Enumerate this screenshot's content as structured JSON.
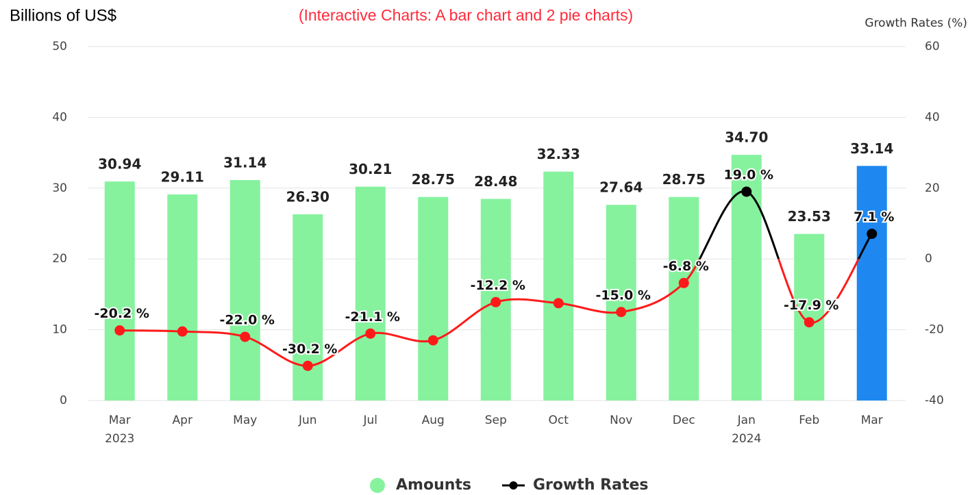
{
  "chart_data": {
    "type": "bar-line",
    "title": "(Interactive Charts: A bar chart and 2 pie charts)",
    "y_label": "Billions of US$",
    "y2_label": "Growth Rates (%)",
    "categories": [
      [
        "Mar",
        "2023"
      ],
      [
        "Apr"
      ],
      [
        "May"
      ],
      [
        "Jun"
      ],
      [
        "Jul"
      ],
      [
        "Aug"
      ],
      [
        "Sep"
      ],
      [
        "Oct"
      ],
      [
        "Nov"
      ],
      [
        "Dec"
      ],
      [
        "Jan",
        "2024"
      ],
      [
        "Feb"
      ],
      [
        "Mar"
      ]
    ],
    "series": [
      {
        "name": "Amounts",
        "type": "bar",
        "color": "#86f29e",
        "colors": [
          "#86f29e",
          "#86f29e",
          "#86f29e",
          "#86f29e",
          "#86f29e",
          "#86f29e",
          "#86f29e",
          "#86f29e",
          "#86f29e",
          "#86f29e",
          "#86f29e",
          "#86f29e",
          "#1e88f0"
        ],
        "values": [
          30.94,
          29.11,
          31.14,
          26.3,
          30.21,
          28.75,
          28.48,
          32.33,
          27.64,
          28.75,
          34.7,
          23.53,
          33.14
        ],
        "value_labels": [
          "30.94",
          "29.11",
          "31.14",
          "26.30",
          "30.21",
          "28.75",
          "28.48",
          "32.33",
          "27.64",
          "28.75",
          "34.70",
          "23.53",
          "33.14"
        ]
      },
      {
        "name": "Growth Rates",
        "type": "line",
        "axis": "y2",
        "color": "#000000",
        "negative_color": "#ff1a1a",
        "values": [
          -20.2,
          -20.5,
          -22.0,
          -30.2,
          -21.1,
          -23.0,
          -12.2,
          -12.5,
          -15.0,
          -6.8,
          19.0,
          -17.9,
          7.1
        ],
        "value_labels": [
          "-20.2 %",
          null,
          "-22.0 %",
          "-30.2 %",
          "-21.1 %",
          null,
          "-12.2 %",
          null,
          "-15.0 %",
          "-6.8 %",
          "19.0 %",
          "-17.9 %",
          "7.1 %"
        ]
      }
    ],
    "ylim": [
      0,
      50
    ],
    "yticks": [
      0,
      10,
      20,
      30,
      40,
      50
    ],
    "y2lim": [
      -40,
      60
    ],
    "y2ticks": [
      -40,
      -20,
      0,
      20,
      40,
      60
    ],
    "grid": true,
    "legend": "bottom"
  }
}
